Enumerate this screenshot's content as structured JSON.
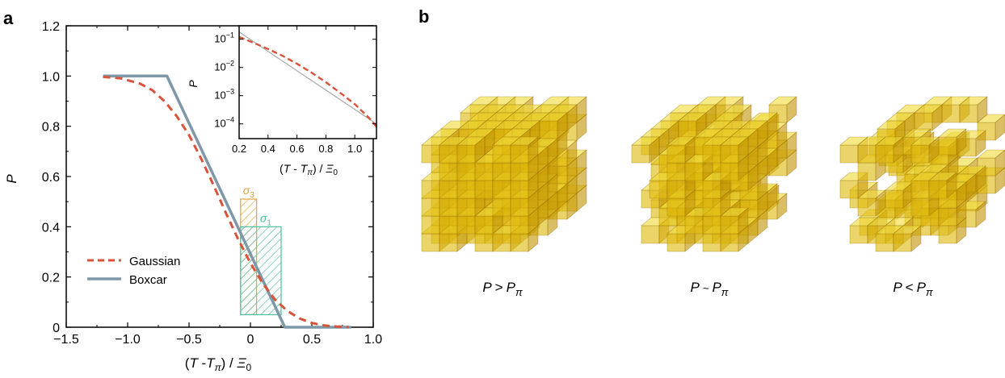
{
  "panels": {
    "a": "a",
    "b": "b"
  },
  "chart_data": [
    {
      "type": "line",
      "panel": "a",
      "xlabel": "(T - Tπ) / Ξ0",
      "ylabel": "P",
      "xlim": [
        -1.5,
        1.0
      ],
      "ylim": [
        0,
        1.2
      ],
      "xticks": [
        "−1.5",
        "−1.0",
        "−0.5",
        "0",
        "0.5",
        "1.0"
      ],
      "yticks": [
        "0",
        "0.2",
        "0.4",
        "0.6",
        "0.8",
        "1.0",
        "1.2"
      ],
      "legend": {
        "position": "lower-left",
        "entries": [
          "Gaussian",
          "Boxcar"
        ]
      },
      "series": [
        {
          "name": "Gaussian",
          "style": "dashed",
          "color": "#d9533a",
          "x": [
            -1.2,
            -1.05,
            -0.9,
            -0.8,
            -0.7,
            -0.6,
            -0.5,
            -0.4,
            -0.3,
            -0.2,
            -0.1,
            0.0,
            0.1,
            0.2,
            0.3,
            0.4,
            0.5,
            0.6,
            0.7,
            0.8
          ],
          "y": [
            0.997,
            0.99,
            0.97,
            0.944,
            0.9,
            0.84,
            0.765,
            0.67,
            0.565,
            0.455,
            0.35,
            0.255,
            0.175,
            0.11,
            0.065,
            0.035,
            0.017,
            0.007,
            0.003,
            0.001
          ]
        },
        {
          "name": "Boxcar",
          "style": "solid",
          "color": "#7f98a8",
          "x": [
            -1.2,
            -0.68,
            0.28,
            0.82
          ],
          "y": [
            1.0,
            1.0,
            0.0,
            0.0
          ]
        }
      ],
      "annotations": [
        {
          "label": "σ3",
          "sub": "3",
          "color": "#e2a23c",
          "x_range": [
            -0.08,
            0.05
          ],
          "y_range": [
            0.05,
            0.51
          ]
        },
        {
          "label": "σ1",
          "sub": "1",
          "color": "#4bbfa0",
          "x_range": [
            -0.08,
            0.25
          ],
          "y_range": [
            0.05,
            0.4
          ]
        }
      ],
      "inset": {
        "xlabel": "(T - Tπ) / Ξ0",
        "ylabel": "P",
        "xscale": "linear",
        "yscale": "log",
        "xlim": [
          0.2,
          1.15
        ],
        "ylim": [
          3e-05,
          0.3
        ],
        "xticks": [
          "0.2",
          "0.4",
          "0.6",
          "0.8",
          "1.0"
        ],
        "yticks": [
          "10−1",
          "10−2",
          "10−3",
          "10−4"
        ],
        "series": [
          {
            "name": "Gaussian",
            "style": "dashed",
            "color": "#d9533a",
            "x": [
              0.2,
              0.3,
              0.4,
              0.5,
              0.6,
              0.7,
              0.8,
              0.9,
              1.0,
              1.1,
              1.15
            ],
            "y": [
              0.12,
              0.075,
              0.045,
              0.026,
              0.0135,
              0.0066,
              0.003,
              0.00125,
              0.0005,
              0.00016,
              8e-05
            ]
          },
          {
            "name": "fit",
            "style": "solid",
            "color": "#a8a8a8",
            "x": [
              0.2,
              1.15
            ],
            "y": [
              0.18,
              0.0001
            ]
          }
        ]
      }
    }
  ],
  "cubes": {
    "color_face": "#d8b412",
    "captions": [
      {
        "p": "P",
        "rel": ">",
        "sub": "π"
      },
      {
        "p": "P",
        "rel": "~",
        "sub": "π"
      },
      {
        "p": "P",
        "rel": "<",
        "sub": "π"
      }
    ]
  }
}
